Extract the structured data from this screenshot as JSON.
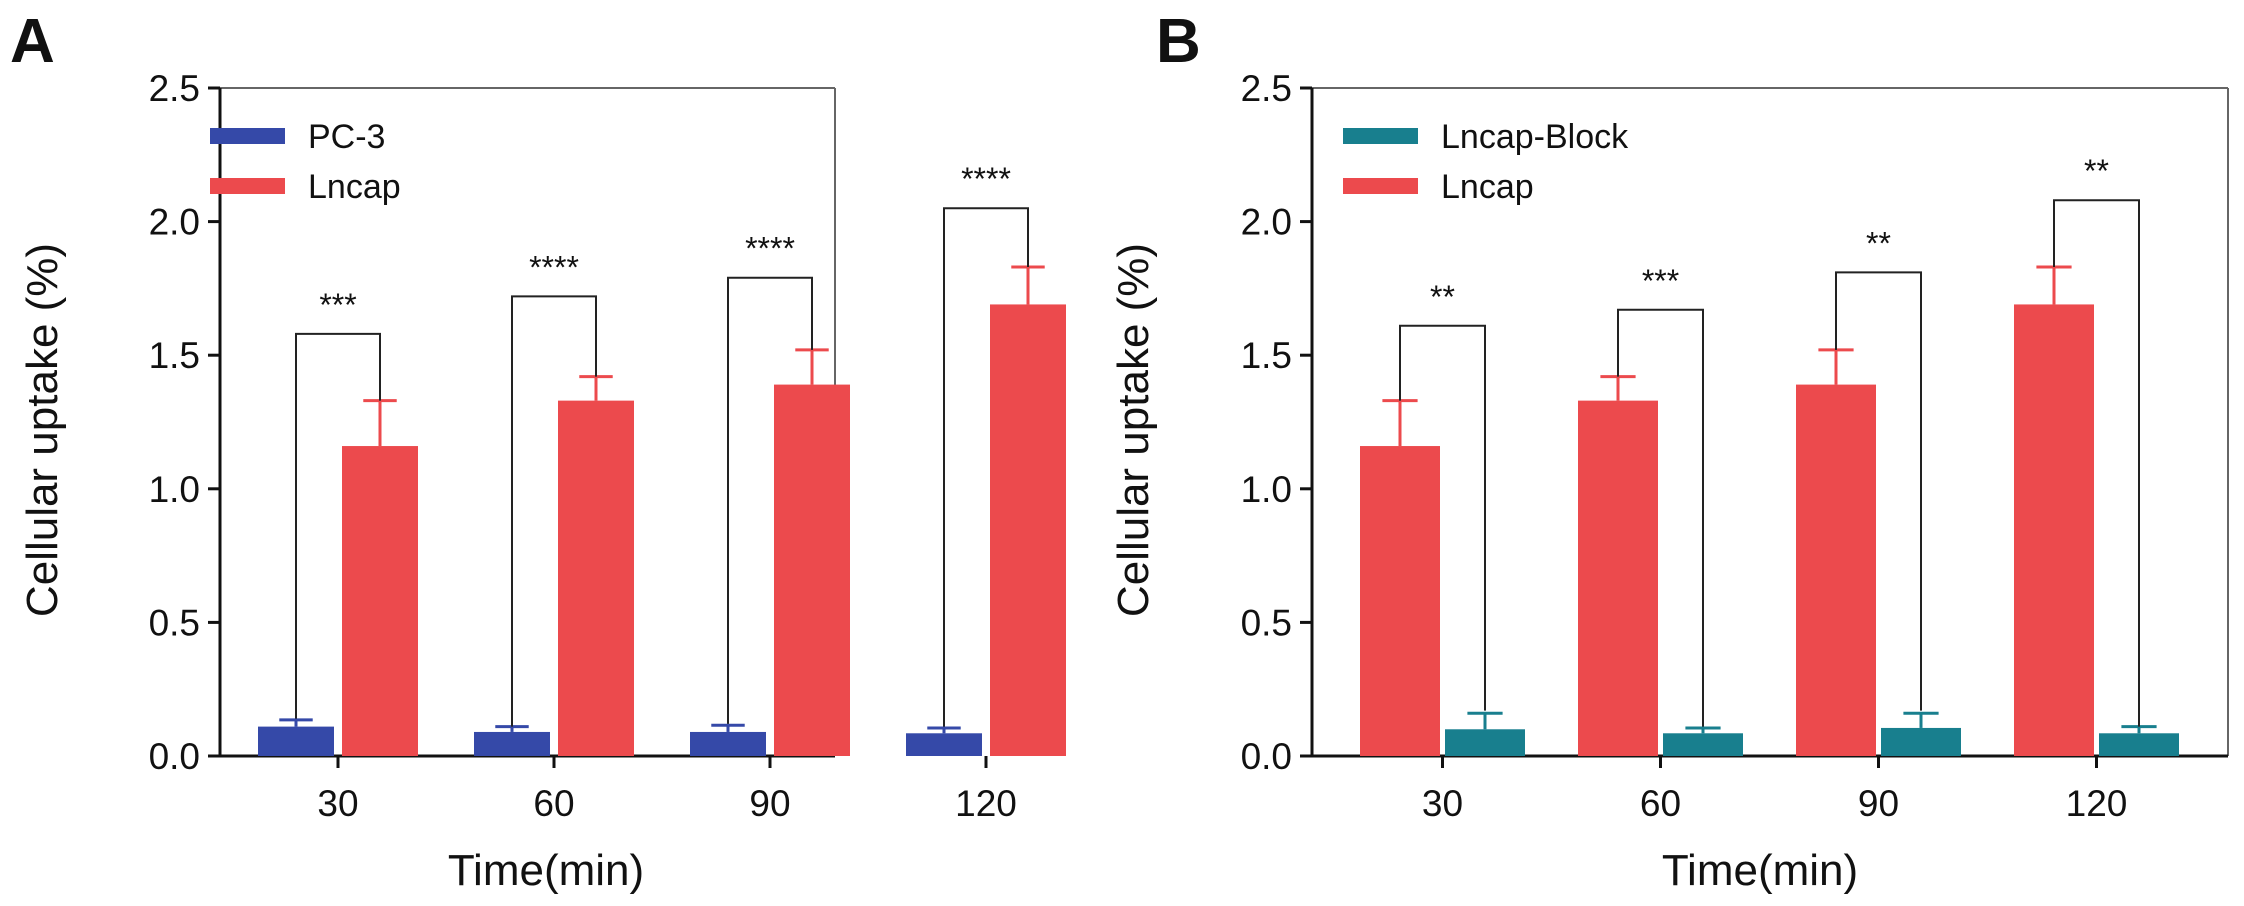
{
  "chart_data": [
    {
      "panel": "A",
      "type": "bar",
      "title": "",
      "xlabel": "Time(min)",
      "ylabel": "Cellular uptake (%)",
      "ylim": [
        0,
        2.5
      ],
      "yticks": [
        "0.0",
        "0.5",
        "1.0",
        "1.5",
        "2.0",
        "2.5"
      ],
      "categories": [
        "30",
        "60",
        "90",
        "120"
      ],
      "legend_position": "top-left",
      "series": [
        {
          "name": "PC-3",
          "color": "#3549a8",
          "values": [
            0.11,
            0.09,
            0.09,
            0.085
          ],
          "errors": [
            0.025,
            0.02,
            0.025,
            0.02
          ]
        },
        {
          "name": "Lncap",
          "color": "#ec4a4d",
          "values": [
            1.16,
            1.33,
            1.39,
            1.69
          ],
          "errors": [
            0.17,
            0.09,
            0.13,
            0.14
          ]
        }
      ],
      "significance": [
        {
          "label": "***",
          "left_top": 0.14,
          "right_top": 1.33,
          "bar_y": 1.58
        },
        {
          "label": "****",
          "left_top": 0.11,
          "right_top": 1.42,
          "bar_y": 1.72
        },
        {
          "label": "****",
          "left_top": 0.12,
          "right_top": 1.52,
          "bar_y": 1.79
        },
        {
          "label": "****",
          "left_top": 0.11,
          "right_top": 1.83,
          "bar_y": 2.05
        }
      ]
    },
    {
      "panel": "B",
      "type": "bar",
      "title": "",
      "xlabel": "Time(min)",
      "ylabel": "Cellular uptake (%)",
      "ylim": [
        0,
        2.5
      ],
      "yticks": [
        "0.0",
        "0.5",
        "1.0",
        "1.5",
        "2.0",
        "2.5"
      ],
      "categories": [
        "30",
        "60",
        "90",
        "120"
      ],
      "legend_position": "top-left",
      "series": [
        {
          "name": "Lncap-Block",
          "color": "#187f8e",
          "values": [
            0.1,
            0.085,
            0.105,
            0.085
          ],
          "errors": [
            0.06,
            0.02,
            0.055,
            0.025
          ]
        },
        {
          "name": "Lncap",
          "color": "#ec4a4d",
          "values": [
            1.16,
            1.33,
            1.39,
            1.69
          ],
          "errors": [
            0.17,
            0.09,
            0.13,
            0.14
          ]
        }
      ],
      "legend_order": [
        0,
        1
      ],
      "bar_order": [
        1,
        0
      ],
      "significance": [
        {
          "label": "**",
          "left_top": 1.33,
          "right_top": 0.17,
          "bar_y": 1.61
        },
        {
          "label": "***",
          "left_top": 1.42,
          "right_top": 0.11,
          "bar_y": 1.67
        },
        {
          "label": "**",
          "left_top": 1.52,
          "right_top": 0.17,
          "bar_y": 1.81
        },
        {
          "label": "**",
          "left_top": 1.83,
          "right_top": 0.11,
          "bar_y": 2.08
        }
      ]
    }
  ]
}
